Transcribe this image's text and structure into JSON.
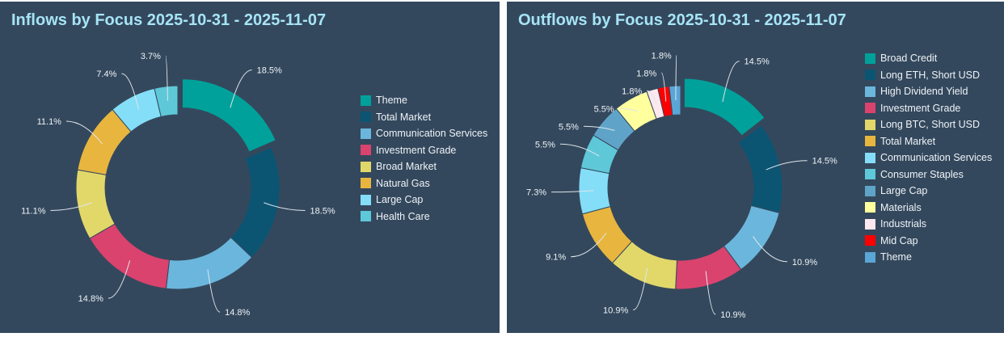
{
  "chart_data": [
    {
      "type": "pie",
      "title": "Inflows by Focus 2025-10-31 - 2025-11-07",
      "legend": "right",
      "donut": true,
      "categories": [
        "Theme",
        "Total Market",
        "Communication Services",
        "Investment Grade",
        "Broad Market",
        "Natural Gas",
        "Large Cap",
        "Health Care"
      ],
      "values": [
        18.5,
        18.5,
        14.8,
        14.8,
        11.1,
        11.1,
        7.4,
        3.7
      ],
      "labels": [
        "18.5%",
        "18.5%",
        "14.8%",
        "14.8%",
        "11.1%",
        "11.1%",
        "7.4%",
        "3.7%"
      ],
      "colors": [
        "#00a19a",
        "#0b5573",
        "#6bb6dc",
        "#d9436e",
        "#e2d86a",
        "#e8b63e",
        "#84def7",
        "#5ec8d8"
      ]
    },
    {
      "type": "pie",
      "title": "Outflows by Focus 2025-10-31 - 2025-11-07",
      "legend": "right",
      "donut": true,
      "categories": [
        "Broad Credit",
        "Long ETH, Short USD",
        "High Dividend Yield",
        "Investment Grade",
        "Long BTC, Short USD",
        "Total Market",
        "Communication Services",
        "Consumer Staples",
        "Large Cap",
        "Materials",
        "Industrials",
        "Mid Cap",
        "Theme"
      ],
      "values": [
        14.5,
        14.5,
        10.9,
        10.9,
        10.9,
        9.1,
        7.3,
        5.5,
        5.5,
        5.5,
        1.8,
        1.8,
        1.8
      ],
      "labels": [
        "14.5%",
        "14.5%",
        "10.9%",
        "10.9%",
        "10.9%",
        "9.1%",
        "7.3%",
        "5.5%",
        "5.5%",
        "5.5%",
        "1.8%",
        "1.8%",
        "1.8%"
      ],
      "colors": [
        "#00a19a",
        "#0b5573",
        "#6bb6dc",
        "#d9436e",
        "#e2d86a",
        "#e8b63e",
        "#84def7",
        "#5ec8d8",
        "#5fa4c8",
        "#ffff9e",
        "#fce8ee",
        "#ff0000",
        "#5aa6d6"
      ]
    }
  ]
}
